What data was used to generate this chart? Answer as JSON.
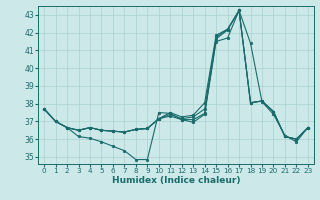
{
  "xlabel": "Humidex (Indice chaleur)",
  "xlim": [
    -0.5,
    23.5
  ],
  "ylim": [
    34.6,
    43.5
  ],
  "yticks": [
    35,
    36,
    37,
    38,
    39,
    40,
    41,
    42,
    43
  ],
  "xticks": [
    0,
    1,
    2,
    3,
    4,
    5,
    6,
    7,
    8,
    9,
    10,
    11,
    12,
    13,
    14,
    15,
    16,
    17,
    18,
    19,
    20,
    21,
    22,
    23
  ],
  "background_color": "#cce8e8",
  "grid_color": "#aad0d0",
  "line_color": "#1a6b6b",
  "lines": [
    [
      37.7,
      37.0,
      36.65,
      36.15,
      36.05,
      35.85,
      35.6,
      35.35,
      34.85,
      34.85,
      37.5,
      37.45,
      37.1,
      36.95,
      37.4,
      41.5,
      41.7,
      43.25,
      41.4,
      38.1,
      37.4,
      36.2,
      35.85,
      36.65
    ],
    [
      37.7,
      37.0,
      36.65,
      36.5,
      36.65,
      36.5,
      36.45,
      36.4,
      36.55,
      36.6,
      37.15,
      37.3,
      37.1,
      37.1,
      37.45,
      41.65,
      42.15,
      43.25,
      38.05,
      38.15,
      37.55,
      36.15,
      36.0,
      36.65
    ],
    [
      37.7,
      37.0,
      36.65,
      36.5,
      36.65,
      36.5,
      36.45,
      36.4,
      36.55,
      36.6,
      37.15,
      37.5,
      37.25,
      37.35,
      38.05,
      41.85,
      42.2,
      43.25,
      38.05,
      38.15,
      37.55,
      36.15,
      36.0,
      36.65
    ],
    [
      37.7,
      37.0,
      36.65,
      36.5,
      36.65,
      36.5,
      36.45,
      36.4,
      36.55,
      36.6,
      37.15,
      37.4,
      37.15,
      37.25,
      37.7,
      41.75,
      42.17,
      43.25,
      38.05,
      38.15,
      37.55,
      36.15,
      36.0,
      36.65
    ]
  ]
}
